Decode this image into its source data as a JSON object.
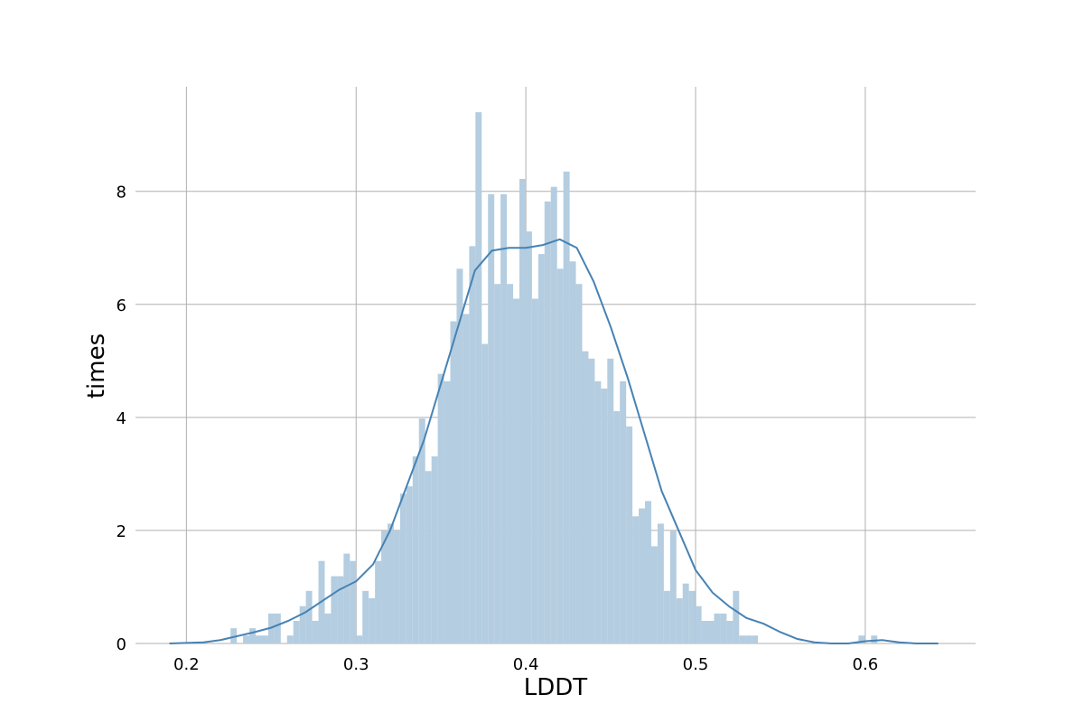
{
  "chart_data": {
    "type": "bar",
    "xlabel": "LDDT",
    "ylabel": "times",
    "xlim": [
      0.17,
      0.665
    ],
    "ylim": [
      0,
      9.85
    ],
    "xticks": [
      0.2,
      0.3,
      0.4,
      0.5,
      0.6
    ],
    "xtick_labels": [
      "0.2",
      "0.3",
      "0.4",
      "0.5",
      "0.6"
    ],
    "yticks": [
      0,
      2,
      4,
      6,
      8
    ],
    "ytick_labels": [
      "0",
      "2",
      "4",
      "6",
      "8"
    ],
    "grid": true,
    "colors": {
      "bars": "#b4cde0",
      "curve": "#4682b4",
      "grid": "#b0b0b0"
    },
    "histogram": {
      "bin_start": 0.226,
      "bin_width": 0.0037,
      "values": [
        0.27,
        0.0,
        0.14,
        0.27,
        0.14,
        0.14,
        0.53,
        0.53,
        0.0,
        0.14,
        0.4,
        0.66,
        0.93,
        0.4,
        1.46,
        0.53,
        1.19,
        1.19,
        1.59,
        1.46,
        0.14,
        0.93,
        0.8,
        1.46,
        1.99,
        2.12,
        1.99,
        2.65,
        2.78,
        3.31,
        3.98,
        3.05,
        3.31,
        4.77,
        4.64,
        5.7,
        6.63,
        5.83,
        7.03,
        9.4,
        5.3,
        7.95,
        6.36,
        7.95,
        6.36,
        6.1,
        8.22,
        7.29,
        6.1,
        6.89,
        7.82,
        8.08,
        6.63,
        8.35,
        6.76,
        6.36,
        5.17,
        5.04,
        4.64,
        4.51,
        5.04,
        4.11,
        4.64,
        3.84,
        2.25,
        2.39,
        2.52,
        1.72,
        2.12,
        0.93,
        1.99,
        0.8,
        1.06,
        0.93,
        0.66,
        0.4,
        0.4,
        0.53,
        0.53,
        0.4,
        0.93,
        0.14,
        0.14,
        0.14,
        0.0,
        0.0,
        0.0,
        0.0,
        0.0,
        0.0,
        0.0,
        0.0,
        0.0,
        0.0,
        0.0,
        0.0,
        0.0,
        0.0,
        0.0,
        0.0,
        0.14,
        0.0,
        0.14
      ]
    },
    "kde_curve": {
      "x": [
        0.19,
        0.21,
        0.22,
        0.24,
        0.25,
        0.26,
        0.27,
        0.28,
        0.29,
        0.3,
        0.31,
        0.32,
        0.33,
        0.34,
        0.35,
        0.36,
        0.37,
        0.38,
        0.39,
        0.4,
        0.41,
        0.42,
        0.43,
        0.44,
        0.45,
        0.46,
        0.47,
        0.48,
        0.49,
        0.5,
        0.51,
        0.52,
        0.53,
        0.54,
        0.55,
        0.56,
        0.57,
        0.58,
        0.59,
        0.6,
        0.61,
        0.62,
        0.63,
        0.643
      ],
      "y": [
        0.0,
        0.02,
        0.06,
        0.2,
        0.28,
        0.4,
        0.55,
        0.75,
        0.95,
        1.1,
        1.4,
        2.0,
        2.8,
        3.6,
        4.6,
        5.6,
        6.6,
        6.95,
        7.0,
        7.0,
        7.05,
        7.15,
        7.0,
        6.4,
        5.6,
        4.7,
        3.7,
        2.7,
        2.0,
        1.3,
        0.9,
        0.65,
        0.45,
        0.35,
        0.2,
        0.08,
        0.02,
        0.0,
        0.0,
        0.04,
        0.06,
        0.02,
        0.0,
        0.0
      ]
    }
  }
}
